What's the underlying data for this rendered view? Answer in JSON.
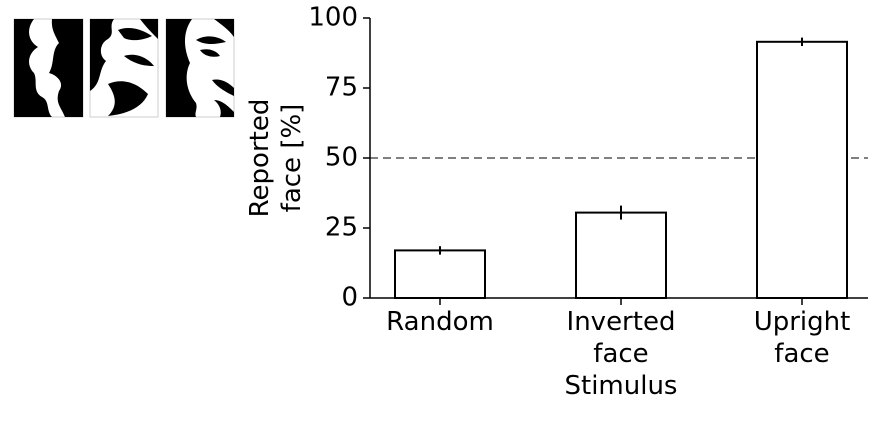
{
  "chart_data": {
    "type": "bar",
    "categories": [
      "Random",
      "Inverted\nface",
      "Upright\nface"
    ],
    "values": [
      17,
      30.5,
      91.5
    ],
    "errors": [
      1.5,
      2.5,
      1.5
    ],
    "color": "#ffffff",
    "edgecolor": "#000000",
    "xlabel": "Stimulus",
    "ylabel": "Reported\nface [%]",
    "ylim": [
      0,
      100
    ],
    "yticks": [
      0,
      25,
      50,
      75,
      100
    ],
    "reference_line": {
      "value": 50,
      "color": "#808080",
      "style": "dashed"
    },
    "grid": false
  }
}
